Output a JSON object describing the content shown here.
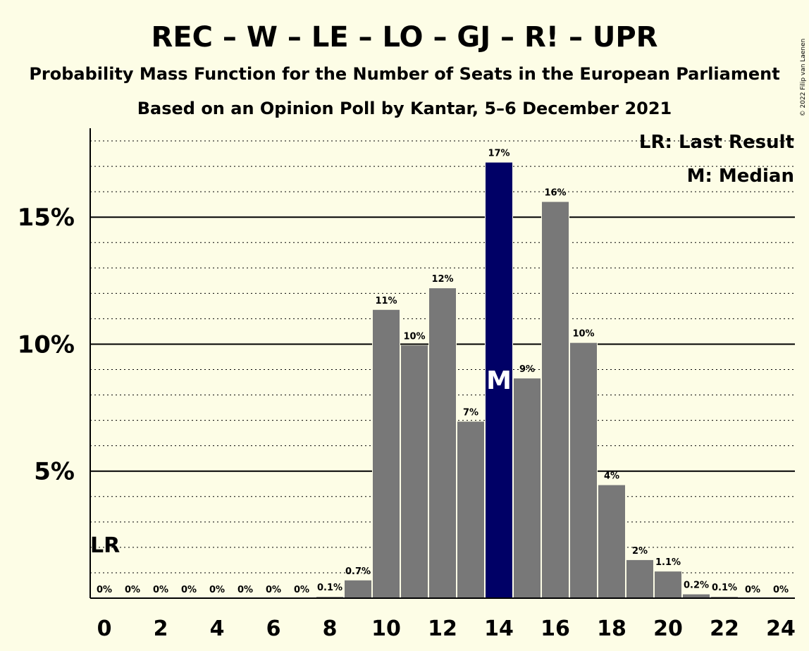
{
  "chart_data": {
    "type": "bar",
    "title": "REC – W – LE – LO – GJ – R! – UPR",
    "subtitle1": "Probability Mass Function for the Number of Seats in the European Parliament",
    "subtitle2": "Based on an Opinion Poll by Kantar, 5–6 December 2021",
    "copyright": "© 2022 Filip van Laenen",
    "x": [
      0,
      1,
      2,
      3,
      4,
      5,
      6,
      7,
      8,
      9,
      10,
      11,
      12,
      13,
      14,
      15,
      16,
      17,
      18,
      19,
      20,
      21,
      22,
      23,
      24
    ],
    "values": [
      0,
      0,
      0,
      0,
      0,
      0,
      0,
      0,
      0.05,
      0.7,
      11.35,
      9.95,
      12.2,
      6.95,
      17.15,
      8.65,
      15.6,
      10.05,
      4.45,
      1.5,
      1.05,
      0.15,
      0.05,
      0,
      0
    ],
    "labels": [
      "0%",
      "0%",
      "0%",
      "0%",
      "0%",
      "0%",
      "0%",
      "0%",
      "0.1%",
      "0.7%",
      "11%",
      "10%",
      "12%",
      "7%",
      "17%",
      "9%",
      "16%",
      "10%",
      "4%",
      "2%",
      "1.1%",
      "0.2%",
      "0.1%",
      "0%",
      "0%"
    ],
    "x_tick_labels": [
      "0",
      "2",
      "4",
      "6",
      "8",
      "10",
      "12",
      "14",
      "16",
      "18",
      "20",
      "22",
      "24"
    ],
    "y_ticks": [
      5,
      10,
      15
    ],
    "y_tick_labels": [
      "5%",
      "10%",
      "15%"
    ],
    "ylim": [
      0,
      18.5
    ],
    "xlim": [
      -0.5,
      24.5
    ],
    "median": 14,
    "median_label": "M",
    "last_result": 0,
    "last_result_label": "LR",
    "legend": [
      "LR: Last Result",
      "M: Median"
    ],
    "legend_position": "top-right",
    "colors": {
      "bar": "#787878",
      "median_bar": "#000066",
      "last_result_bar": "#000066",
      "background": "#fdfde6",
      "grid": "#000000"
    }
  }
}
